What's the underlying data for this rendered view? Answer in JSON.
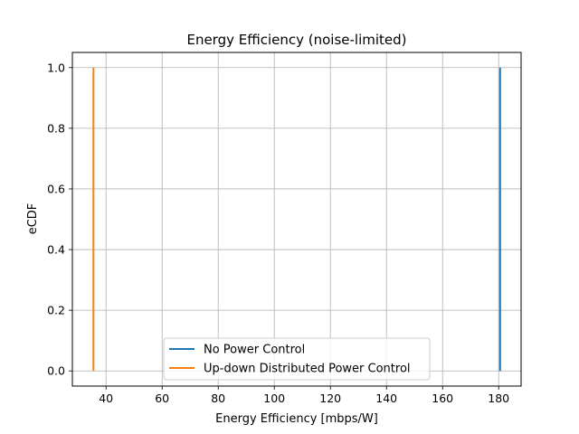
{
  "chart_data": {
    "type": "line",
    "title": "Energy Efficiency (noise-limited)",
    "xlabel": "Energy Efficiency [mbps/W]",
    "ylabel": "eCDF",
    "xlim": [
      28,
      188
    ],
    "ylim": [
      -0.05,
      1.05
    ],
    "xticks": [
      40,
      60,
      80,
      100,
      120,
      140,
      160,
      180
    ],
    "yticks": [
      0.0,
      0.2,
      0.4,
      0.6,
      0.8,
      1.0
    ],
    "grid": true,
    "legend_position": "lower-center",
    "series": [
      {
        "name": "No Power Control",
        "color": "#1f77b4",
        "x": [
          180.5,
          180.5
        ],
        "y": [
          0.0,
          1.0
        ]
      },
      {
        "name": "Up-down Distributed Power Control",
        "color": "#ff7f0e",
        "x": [
          35.5,
          35.5
        ],
        "y": [
          0.0,
          1.0
        ]
      }
    ]
  }
}
